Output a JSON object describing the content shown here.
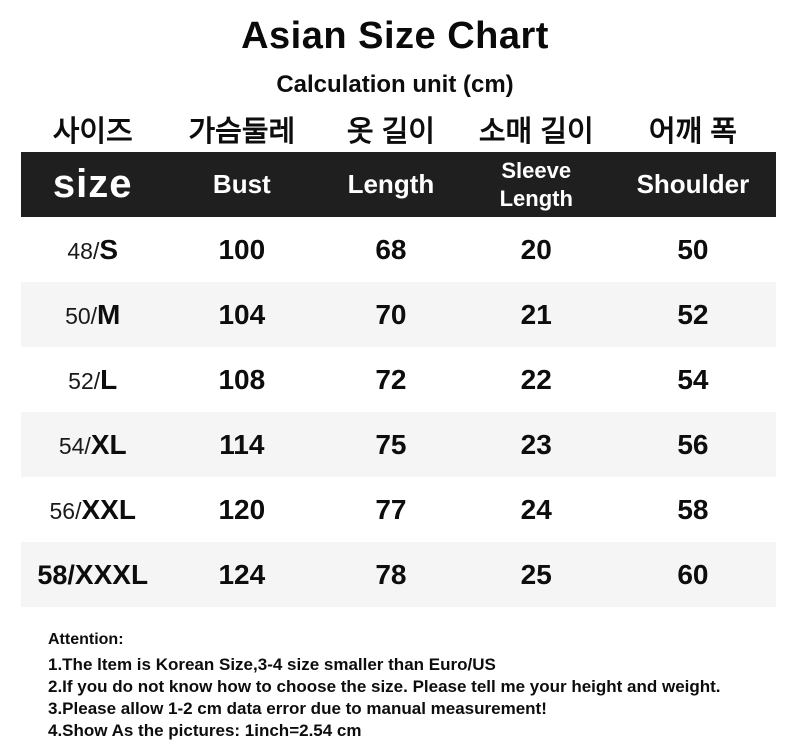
{
  "page": {
    "title": "Asian Size Chart",
    "subtitle": "Calculation unit (cm)"
  },
  "table": {
    "korean_headers": [
      "사이즈",
      "가슴둘레",
      "옷 길이",
      "소매 길이",
      "어깨 폭"
    ],
    "headers": {
      "size": "size",
      "bust": "Bust",
      "length": "Length",
      "sleeve_line1": "Sleeve",
      "sleeve_line2": "Length",
      "shoulder": "Shoulder"
    },
    "rows": [
      {
        "size_num": "48/",
        "size_letter": "S",
        "bust": "100",
        "length": "68",
        "sleeve": "20",
        "shoulder": "50"
      },
      {
        "size_num": "50/",
        "size_letter": "M",
        "bust": "104",
        "length": "70",
        "sleeve": "21",
        "shoulder": "52"
      },
      {
        "size_num": "52/",
        "size_letter": "L",
        "bust": "108",
        "length": "72",
        "sleeve": "22",
        "shoulder": "54"
      },
      {
        "size_num": "54/",
        "size_letter": "XL",
        "bust": "114",
        "length": "75",
        "sleeve": "23",
        "shoulder": "56"
      },
      {
        "size_num": "56/",
        "size_letter": "XXL",
        "bust": "120",
        "length": "77",
        "sleeve": "24",
        "shoulder": "58"
      },
      {
        "size_num": "58/",
        "size_letter": "XXXL",
        "bust": "124",
        "length": "78",
        "sleeve": "25",
        "shoulder": "60"
      }
    ]
  },
  "notes": {
    "heading": "Attention:",
    "items": [
      "1.The ltem is Korean Size,3-4 size smaller than Euro/US",
      "2.If you do not know how to choose the size. Please tell me your height and weight.",
      "3.Please allow 1-2 cm data error due to manual measurement!",
      "4.Show As the pictures: 1inch=2.54 cm"
    ]
  },
  "colors": {
    "header_bar_bg": "#1f1f1f",
    "header_bar_text": "#ffffff",
    "row_alt_bg": "#f5f5f5",
    "text": "#0d0d0d"
  }
}
